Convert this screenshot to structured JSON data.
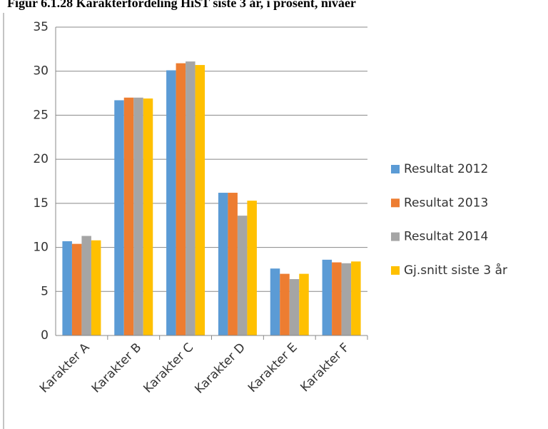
{
  "chart_data": {
    "type": "bar",
    "title": "Figur 6.1.28 Karakterfordeling HiST siste 3 år, i prosent, nivåer",
    "categories": [
      "Karakter A",
      "Karakter B",
      "Karakter C",
      "Karakter D",
      "Karakter E",
      "Karakter F"
    ],
    "series": [
      {
        "name": "Resultat 2012",
        "color": "#5b9bd5",
        "values": [
          10.7,
          26.7,
          30.1,
          16.2,
          7.6,
          8.6
        ]
      },
      {
        "name": "Resultat 2013",
        "color": "#ed7d31",
        "values": [
          10.4,
          27.0,
          30.9,
          16.2,
          7.0,
          8.3
        ]
      },
      {
        "name": "Resultat 2014",
        "color": "#a5a5a5",
        "values": [
          11.3,
          27.0,
          31.1,
          13.6,
          6.4,
          8.2
        ]
      },
      {
        "name": "Gj.snitt siste 3 år",
        "color": "#ffc000",
        "values": [
          10.8,
          26.9,
          30.7,
          15.3,
          7.0,
          8.4
        ]
      }
    ],
    "ylim": [
      0,
      35
    ],
    "yticks": [
      0,
      5,
      10,
      15,
      20,
      25,
      30,
      35
    ],
    "grid": true,
    "legend": "right"
  }
}
